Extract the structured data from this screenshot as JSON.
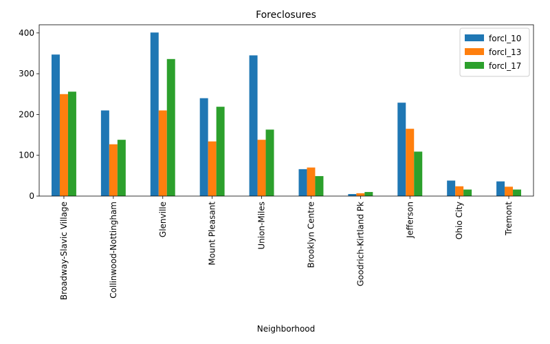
{
  "chart_data": {
    "type": "bar",
    "title": "Foreclosures",
    "xlabel": "Neighborhood",
    "ylabel": "",
    "ylim": [
      0,
      420
    ],
    "yticks": [
      0,
      100,
      200,
      300,
      400
    ],
    "legend_position": "top-right",
    "categories": [
      "Broadway-Slavic Village",
      "Collinwood-Nottingham",
      "Glenville",
      "Mount Pleasant",
      "Union-Miles",
      "Brooklyn Centre",
      "Goodrich-Kirtland Pk",
      "Jefferson",
      "Ohio City",
      "Tremont"
    ],
    "series": [
      {
        "name": "forcl_10",
        "color": "#1f77b4",
        "values": [
          347,
          210,
          401,
          240,
          345,
          66,
          5,
          229,
          38,
          36
        ]
      },
      {
        "name": "forcl_13",
        "color": "#ff7f0e",
        "values": [
          250,
          127,
          210,
          134,
          138,
          70,
          7,
          165,
          24,
          23
        ]
      },
      {
        "name": "forcl_17",
        "color": "#2ca02c",
        "values": [
          256,
          138,
          336,
          219,
          163,
          49,
          10,
          109,
          16,
          16
        ]
      }
    ]
  }
}
